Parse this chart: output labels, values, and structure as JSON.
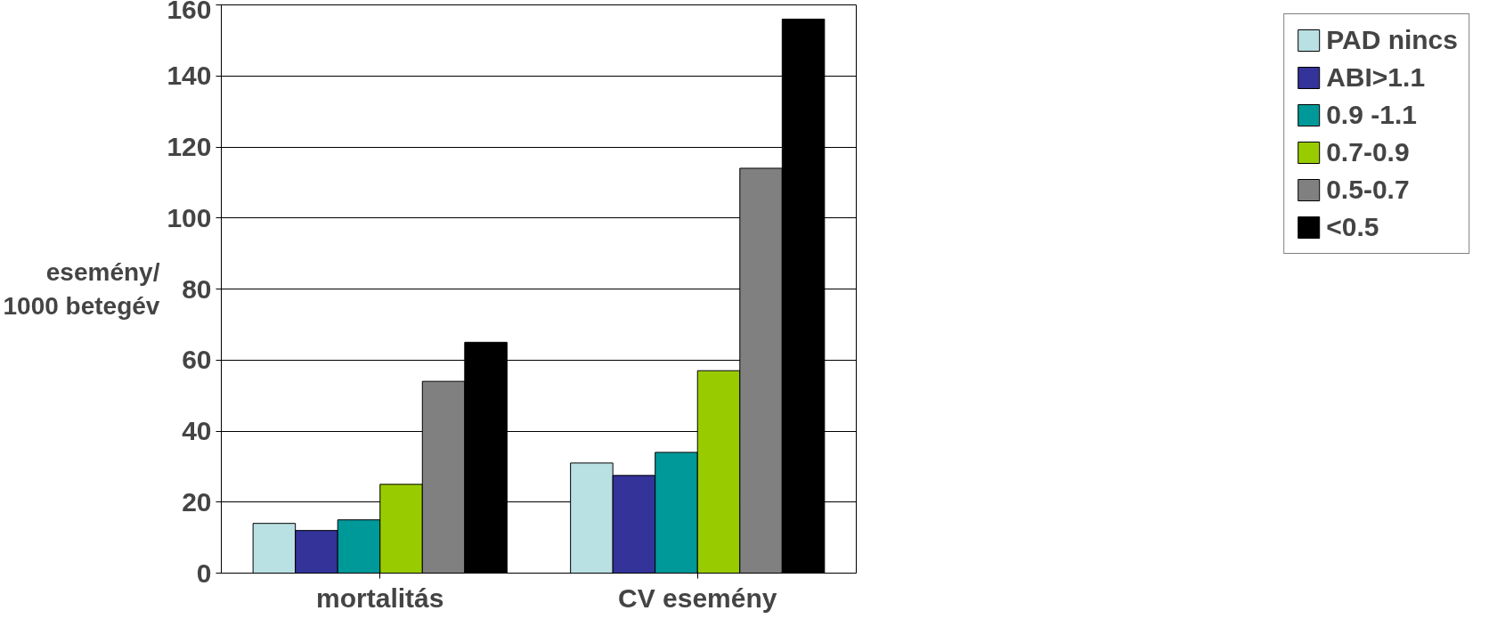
{
  "chart_data": {
    "type": "bar",
    "ylabel": "esemény/\n1000 betegév",
    "categories": [
      "mortalitás",
      "CV esemény"
    ],
    "series": [
      {
        "name": "PAD nincs",
        "color": "#b9e0e3",
        "values": [
          14,
          31
        ]
      },
      {
        "name": "ABI>1.1",
        "color": "#333399",
        "values": [
          12,
          27.5
        ]
      },
      {
        "name": "0.9 -1.1",
        "color": "#009999",
        "values": [
          15,
          34
        ]
      },
      {
        "name": "0.7-0.9",
        "color": "#99cc00",
        "values": [
          25,
          57
        ]
      },
      {
        "name": "0.5-0.7",
        "color": "#808080",
        "values": [
          54,
          114
        ]
      },
      {
        "name": "<0.5",
        "color": "#000000",
        "values": [
          65,
          156
        ]
      }
    ],
    "ylim": [
      0,
      160
    ],
    "yticks": [
      0,
      20,
      40,
      60,
      80,
      100,
      120,
      140,
      160
    ],
    "grid": "y",
    "legend": "right"
  }
}
